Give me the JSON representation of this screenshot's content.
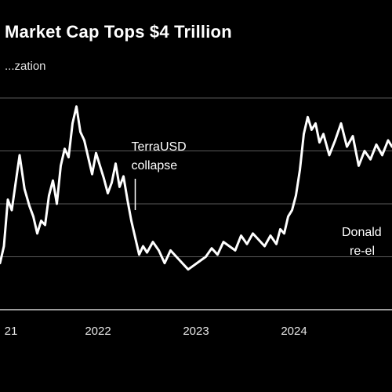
{
  "chart_data": {
    "type": "line",
    "title": "Market Cap Tops $4 Trillion",
    "subtitle": "...zation",
    "xlabel": "",
    "ylabel": "",
    "grid": true,
    "legend": "none",
    "line_color": "#ffffff",
    "background": "#000000",
    "x_ticks": [
      "21",
      "2022",
      "2023",
      "2024"
    ],
    "xlim": [
      2021.0,
      2025.0
    ],
    "ylim": [
      0,
      1
    ],
    "series": [
      {
        "x": [
          2021.0,
          2021.04,
          2021.08,
          2021.12,
          2021.16,
          2021.2,
          2021.25,
          2021.3,
          2021.34,
          2021.38,
          2021.42,
          2021.46,
          2021.5,
          2021.54,
          2021.58,
          2021.62,
          2021.66,
          2021.7,
          2021.74,
          2021.78,
          2021.82,
          2021.86,
          2021.9,
          2021.94,
          2021.98,
          2022.02,
          2022.06,
          2022.1,
          2022.14,
          2022.18,
          2022.22,
          2022.26,
          2022.3,
          2022.34,
          2022.38,
          2022.42,
          2022.46,
          2022.5,
          2022.56,
          2022.62,
          2022.68,
          2022.74,
          2022.8,
          2022.86,
          2022.92,
          2022.98,
          2023.04,
          2023.1,
          2023.16,
          2023.22,
          2023.28,
          2023.34,
          2023.4,
          2023.46,
          2023.52,
          2023.58,
          2023.64,
          2023.7,
          2023.76,
          2023.82,
          2023.86,
          2023.9,
          2023.94,
          2023.98,
          2024.02,
          2024.06,
          2024.1,
          2024.14,
          2024.18,
          2024.22,
          2024.26,
          2024.3,
          2024.36,
          2024.42,
          2024.48,
          2024.54,
          2024.6,
          2024.66,
          2024.72,
          2024.78,
          2024.84,
          2024.9,
          2024.96,
          2025.0
        ],
        "values": [
          0.22,
          0.3,
          0.52,
          0.47,
          0.6,
          0.73,
          0.57,
          0.49,
          0.44,
          0.36,
          0.42,
          0.4,
          0.54,
          0.61,
          0.5,
          0.68,
          0.76,
          0.72,
          0.88,
          0.96,
          0.84,
          0.8,
          0.72,
          0.64,
          0.74,
          0.68,
          0.62,
          0.55,
          0.6,
          0.69,
          0.58,
          0.63,
          0.52,
          0.42,
          0.34,
          0.26,
          0.3,
          0.27,
          0.32,
          0.28,
          0.22,
          0.28,
          0.25,
          0.22,
          0.19,
          0.21,
          0.23,
          0.25,
          0.29,
          0.26,
          0.32,
          0.3,
          0.28,
          0.35,
          0.31,
          0.36,
          0.33,
          0.3,
          0.35,
          0.31,
          0.38,
          0.36,
          0.44,
          0.47,
          0.54,
          0.66,
          0.83,
          0.91,
          0.85,
          0.88,
          0.79,
          0.83,
          0.73,
          0.8,
          0.88,
          0.77,
          0.82,
          0.68,
          0.75,
          0.71,
          0.78,
          0.73,
          0.8,
          0.77
        ]
      }
    ],
    "annotations": [
      {
        "lines": [
          "TerraUSD",
          "collapse"
        ],
        "at_x": 2022.38
      },
      {
        "lines": [
          "Donald",
          "re-el"
        ],
        "at_x": 2024.9
      }
    ]
  }
}
